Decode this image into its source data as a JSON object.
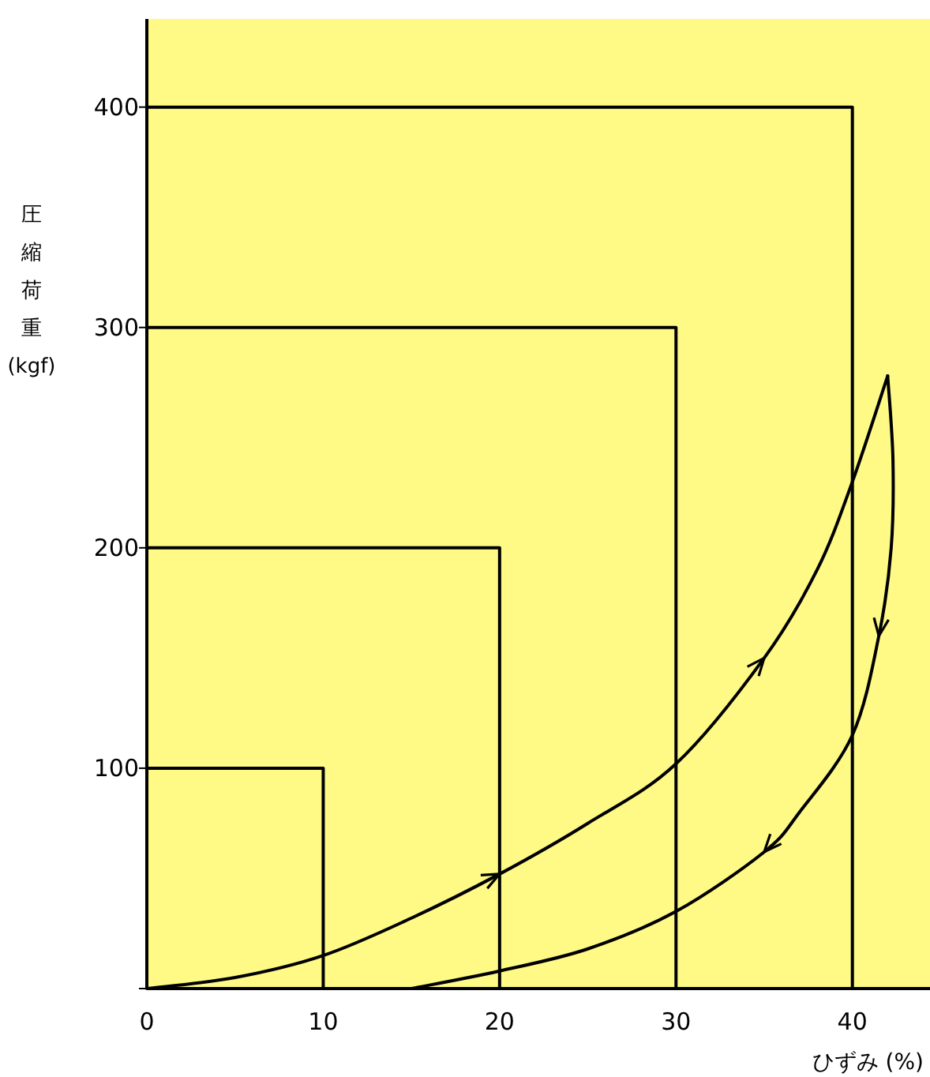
{
  "chart_data": {
    "type": "line",
    "xlabel": "ひずみ (%)",
    "ylabel": "圧縮荷重 (kgf)",
    "xlim": [
      0,
      44.4
    ],
    "ylim": [
      0,
      440
    ],
    "xticks": [
      0,
      10,
      20,
      30,
      40
    ],
    "yticks": [
      {
        "value": 0,
        "label": null
      },
      100,
      200,
      300,
      400
    ],
    "grid": false,
    "marker": "none",
    "line_style": "solid",
    "series": [
      {
        "color": "#000000",
        "x": [
          0,
          10,
          10
        ],
        "values": [
          100,
          100,
          0
        ]
      },
      {
        "color": "#000000",
        "x": [
          0,
          20,
          20
        ],
        "values": [
          200,
          200,
          0
        ]
      },
      {
        "color": "#000000",
        "x": [
          0,
          30,
          30
        ],
        "values": [
          300,
          300,
          0
        ]
      },
      {
        "color": "#000000",
        "x": [
          0,
          40,
          40
        ],
        "values": [
          400,
          400,
          0
        ]
      },
      {
        "color": "#000000",
        "x": [
          0,
          5,
          10,
          15,
          20,
          25,
          30,
          35,
          38,
          40,
          42
        ],
        "values": [
          0,
          5,
          15,
          32,
          52,
          75,
          102,
          150,
          190,
          230,
          278
        ]
      },
      {
        "color": "#000000",
        "x": [
          42,
          42.3,
          42.2,
          41.5,
          40,
          37,
          35,
          30,
          25,
          20,
          15
        ],
        "values": [
          278,
          240,
          200,
          160,
          115,
          80,
          62,
          35,
          18,
          8,
          0
        ]
      }
    ]
  }
}
